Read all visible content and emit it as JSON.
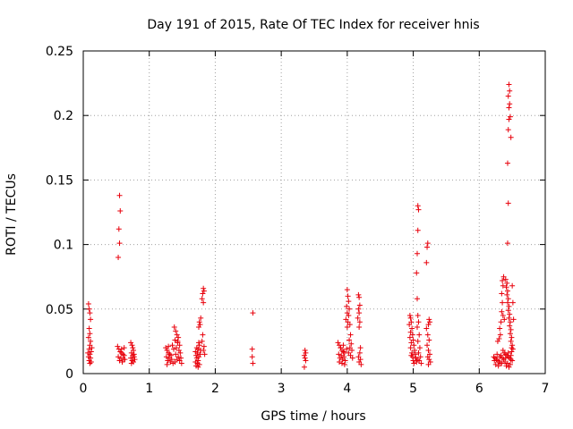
{
  "chart_data": {
    "type": "scatter",
    "title": "Day 191 of 2015, Rate Of TEC Index for receiver hnis",
    "xlabel": "GPS time / hours",
    "ylabel": "ROTI / TECUs",
    "xlim": [
      0,
      7
    ],
    "ylim": [
      0,
      0.25
    ],
    "xticks": [
      0,
      1,
      2,
      3,
      4,
      5,
      6,
      7
    ],
    "xtick_labels": [
      "0",
      "1",
      "2",
      "3",
      "4",
      "5",
      "6",
      "7"
    ],
    "yticks": [
      0,
      0.05,
      0.1,
      0.15,
      0.2,
      0.25
    ],
    "ytick_labels": [
      "0",
      "0.05",
      "0.1",
      "0.15",
      "0.2",
      "0.25"
    ],
    "grid": true,
    "marker": "+",
    "marker_color": "#e8000b",
    "series": [
      {
        "name": "ROTI",
        "points": [
          [
            0.08,
            0.054
          ],
          [
            0.09,
            0.05
          ],
          [
            0.1,
            0.047
          ],
          [
            0.11,
            0.042
          ],
          [
            0.09,
            0.035
          ],
          [
            0.1,
            0.031
          ],
          [
            0.08,
            0.028
          ],
          [
            0.11,
            0.025
          ],
          [
            0.1,
            0.022
          ],
          [
            0.09,
            0.019
          ],
          [
            0.12,
            0.017
          ],
          [
            0.1,
            0.015
          ],
          [
            0.08,
            0.013
          ],
          [
            0.11,
            0.012
          ],
          [
            0.09,
            0.01
          ],
          [
            0.12,
            0.009
          ],
          [
            0.1,
            0.008
          ],
          [
            0.07,
            0.016
          ],
          [
            0.13,
            0.02
          ],
          [
            0.55,
            0.138
          ],
          [
            0.56,
            0.126
          ],
          [
            0.54,
            0.112
          ],
          [
            0.55,
            0.101
          ],
          [
            0.53,
            0.09
          ],
          [
            0.52,
            0.021
          ],
          [
            0.54,
            0.019
          ],
          [
            0.56,
            0.017
          ],
          [
            0.58,
            0.016
          ],
          [
            0.6,
            0.015
          ],
          [
            0.62,
            0.014
          ],
          [
            0.53,
            0.013
          ],
          [
            0.57,
            0.012
          ],
          [
            0.61,
            0.011
          ],
          [
            0.55,
            0.01
          ],
          [
            0.59,
            0.009
          ],
          [
            0.63,
            0.011
          ],
          [
            0.58,
            0.019
          ],
          [
            0.62,
            0.02
          ],
          [
            0.72,
            0.024
          ],
          [
            0.74,
            0.022
          ],
          [
            0.75,
            0.02
          ],
          [
            0.76,
            0.018
          ],
          [
            0.73,
            0.016
          ],
          [
            0.77,
            0.015
          ],
          [
            0.75,
            0.014
          ],
          [
            0.72,
            0.012
          ],
          [
            0.78,
            0.011
          ],
          [
            0.74,
            0.01
          ],
          [
            0.76,
            0.009
          ],
          [
            0.73,
            0.008
          ],
          [
            0.77,
            0.013
          ],
          [
            1.25,
            0.02
          ],
          [
            1.27,
            0.018
          ],
          [
            1.29,
            0.016
          ],
          [
            1.31,
            0.015
          ],
          [
            1.33,
            0.014
          ],
          [
            1.26,
            0.013
          ],
          [
            1.3,
            0.012
          ],
          [
            1.34,
            0.011
          ],
          [
            1.28,
            0.01
          ],
          [
            1.32,
            0.009
          ],
          [
            1.36,
            0.008
          ],
          [
            1.27,
            0.007
          ],
          [
            1.35,
            0.022
          ],
          [
            1.37,
            0.019
          ],
          [
            1.29,
            0.021
          ],
          [
            1.38,
            0.036
          ],
          [
            1.4,
            0.033
          ],
          [
            1.42,
            0.03
          ],
          [
            1.44,
            0.028
          ],
          [
            1.39,
            0.026
          ],
          [
            1.43,
            0.024
          ],
          [
            1.46,
            0.022
          ],
          [
            1.41,
            0.02
          ],
          [
            1.45,
            0.018
          ],
          [
            1.47,
            0.016
          ],
          [
            1.4,
            0.015
          ],
          [
            1.44,
            0.013
          ],
          [
            1.48,
            0.012
          ],
          [
            1.42,
            0.011
          ],
          [
            1.46,
            0.01
          ],
          [
            1.39,
            0.009
          ],
          [
            1.49,
            0.008
          ],
          [
            1.43,
            0.025
          ],
          [
            1.75,
            0.024
          ],
          [
            1.76,
            0.022
          ],
          [
            1.72,
            0.02
          ],
          [
            1.74,
            0.019
          ],
          [
            1.7,
            0.017
          ],
          [
            1.73,
            0.016
          ],
          [
            1.71,
            0.014
          ],
          [
            1.75,
            0.013
          ],
          [
            1.72,
            0.012
          ],
          [
            1.74,
            0.01
          ],
          [
            1.7,
            0.009
          ],
          [
            1.73,
            0.008
          ],
          [
            1.76,
            0.007
          ],
          [
            1.71,
            0.006
          ],
          [
            1.74,
            0.005
          ],
          [
            1.78,
            0.018
          ],
          [
            1.77,
            0.015
          ],
          [
            1.78,
            0.043
          ],
          [
            1.76,
            0.04
          ],
          [
            1.77,
            0.038
          ],
          [
            1.75,
            0.036
          ],
          [
            1.82,
            0.066
          ],
          [
            1.83,
            0.064
          ],
          [
            1.81,
            0.062
          ],
          [
            1.8,
            0.058
          ],
          [
            1.82,
            0.055
          ],
          [
            1.81,
            0.03
          ],
          [
            1.8,
            0.025
          ],
          [
            1.83,
            0.021
          ],
          [
            1.82,
            0.018
          ],
          [
            1.84,
            0.015
          ],
          [
            2.57,
            0.047
          ],
          [
            2.56,
            0.019
          ],
          [
            2.56,
            0.013
          ],
          [
            2.57,
            0.008
          ],
          [
            3.36,
            0.018
          ],
          [
            3.37,
            0.016
          ],
          [
            3.35,
            0.014
          ],
          [
            3.36,
            0.012
          ],
          [
            3.37,
            0.01
          ],
          [
            3.35,
            0.005
          ],
          [
            3.86,
            0.024
          ],
          [
            3.88,
            0.022
          ],
          [
            3.9,
            0.02
          ],
          [
            3.92,
            0.018
          ],
          [
            3.94,
            0.017
          ],
          [
            3.96,
            0.016
          ],
          [
            3.87,
            0.015
          ],
          [
            3.91,
            0.014
          ],
          [
            3.95,
            0.013
          ],
          [
            3.89,
            0.012
          ],
          [
            3.93,
            0.011
          ],
          [
            3.97,
            0.01
          ],
          [
            3.88,
            0.009
          ],
          [
            3.92,
            0.008
          ],
          [
            3.96,
            0.007
          ],
          [
            3.9,
            0.02
          ],
          [
            3.94,
            0.022
          ],
          [
            3.99,
            0.019
          ],
          [
            4.0,
            0.065
          ],
          [
            4.01,
            0.06
          ],
          [
            4.02,
            0.056
          ],
          [
            3.99,
            0.052
          ],
          [
            4.03,
            0.05
          ],
          [
            4.0,
            0.047
          ],
          [
            4.02,
            0.045
          ],
          [
            3.98,
            0.042
          ],
          [
            4.01,
            0.04
          ],
          [
            4.04,
            0.038
          ],
          [
            4.0,
            0.036
          ],
          [
            4.05,
            0.03
          ],
          [
            4.03,
            0.026
          ],
          [
            4.06,
            0.023
          ],
          [
            4.04,
            0.02
          ],
          [
            4.07,
            0.018
          ],
          [
            4.02,
            0.016
          ],
          [
            4.05,
            0.014
          ],
          [
            4.08,
            0.012
          ],
          [
            4.17,
            0.061
          ],
          [
            4.18,
            0.059
          ],
          [
            4.19,
            0.053
          ],
          [
            4.17,
            0.05
          ],
          [
            4.18,
            0.047
          ],
          [
            4.16,
            0.043
          ],
          [
            4.19,
            0.04
          ],
          [
            4.18,
            0.036
          ],
          [
            4.2,
            0.02
          ],
          [
            4.19,
            0.016
          ],
          [
            4.17,
            0.013
          ],
          [
            4.2,
            0.011
          ],
          [
            4.18,
            0.009
          ],
          [
            4.21,
            0.007
          ],
          [
            4.95,
            0.045
          ],
          [
            4.96,
            0.043
          ],
          [
            4.97,
            0.04
          ],
          [
            4.94,
            0.038
          ],
          [
            4.98,
            0.035
          ],
          [
            4.96,
            0.032
          ],
          [
            4.99,
            0.03
          ],
          [
            4.95,
            0.028
          ],
          [
            5.0,
            0.026
          ],
          [
            4.97,
            0.024
          ],
          [
            5.01,
            0.022
          ],
          [
            4.96,
            0.02
          ],
          [
            5.02,
            0.018
          ],
          [
            4.98,
            0.016
          ],
          [
            5.03,
            0.015
          ],
          [
            4.99,
            0.013
          ],
          [
            5.04,
            0.012
          ],
          [
            5.0,
            0.01
          ],
          [
            5.05,
            0.009
          ],
          [
            5.01,
            0.008
          ],
          [
            5.06,
            0.011
          ],
          [
            4.97,
            0.014
          ],
          [
            5.07,
            0.13
          ],
          [
            5.08,
            0.127
          ],
          [
            5.07,
            0.111
          ],
          [
            5.06,
            0.093
          ],
          [
            5.05,
            0.078
          ],
          [
            5.06,
            0.058
          ],
          [
            5.07,
            0.045
          ],
          [
            5.08,
            0.04
          ],
          [
            5.06,
            0.036
          ],
          [
            5.09,
            0.03
          ],
          [
            5.07,
            0.025
          ],
          [
            5.1,
            0.02
          ],
          [
            5.08,
            0.016
          ],
          [
            5.11,
            0.013
          ],
          [
            5.09,
            0.01
          ],
          [
            5.12,
            0.008
          ],
          [
            5.22,
            0.101
          ],
          [
            5.21,
            0.098
          ],
          [
            5.2,
            0.086
          ],
          [
            5.24,
            0.042
          ],
          [
            5.25,
            0.04
          ],
          [
            5.23,
            0.038
          ],
          [
            5.2,
            0.035
          ],
          [
            5.22,
            0.03
          ],
          [
            5.24,
            0.026
          ],
          [
            5.21,
            0.022
          ],
          [
            5.23,
            0.018
          ],
          [
            5.25,
            0.015
          ],
          [
            5.22,
            0.013
          ],
          [
            5.24,
            0.011
          ],
          [
            5.26,
            0.009
          ],
          [
            5.23,
            0.007
          ],
          [
            6.22,
            0.013
          ],
          [
            6.24,
            0.012
          ],
          [
            6.26,
            0.011
          ],
          [
            6.28,
            0.01
          ],
          [
            6.3,
            0.009
          ],
          [
            6.32,
            0.008
          ],
          [
            6.25,
            0.007
          ],
          [
            6.29,
            0.006
          ],
          [
            6.33,
            0.014
          ],
          [
            6.27,
            0.015
          ],
          [
            6.31,
            0.013
          ],
          [
            6.35,
            0.012
          ],
          [
            6.23,
            0.01
          ],
          [
            6.34,
            0.008
          ],
          [
            6.28,
            0.025
          ],
          [
            6.3,
            0.027
          ],
          [
            6.32,
            0.03
          ],
          [
            6.31,
            0.035
          ],
          [
            6.33,
            0.04
          ],
          [
            6.34,
            0.048
          ],
          [
            6.35,
            0.055
          ],
          [
            6.34,
            0.062
          ],
          [
            6.36,
            0.068
          ],
          [
            6.35,
            0.072
          ],
          [
            6.37,
            0.075
          ],
          [
            6.36,
            0.045
          ],
          [
            6.38,
            0.042
          ],
          [
            6.36,
            0.018
          ],
          [
            6.38,
            0.016
          ],
          [
            6.4,
            0.015
          ],
          [
            6.42,
            0.014
          ],
          [
            6.44,
            0.013
          ],
          [
            6.46,
            0.012
          ],
          [
            6.48,
            0.011
          ],
          [
            6.5,
            0.01
          ],
          [
            6.39,
            0.009
          ],
          [
            6.43,
            0.008
          ],
          [
            6.47,
            0.007
          ],
          [
            6.41,
            0.006
          ],
          [
            6.45,
            0.005
          ],
          [
            6.49,
            0.017
          ],
          [
            6.51,
            0.019
          ],
          [
            6.37,
            0.011
          ],
          [
            6.4,
            0.012
          ],
          [
            6.44,
            0.016
          ],
          [
            6.48,
            0.014
          ],
          [
            6.45,
            0.224
          ],
          [
            6.46,
            0.219
          ],
          [
            6.44,
            0.215
          ],
          [
            6.46,
            0.209
          ],
          [
            6.45,
            0.206
          ],
          [
            6.47,
            0.199
          ],
          [
            6.45,
            0.197
          ],
          [
            6.44,
            0.189
          ],
          [
            6.48,
            0.183
          ],
          [
            6.43,
            0.163
          ],
          [
            6.44,
            0.132
          ],
          [
            6.43,
            0.101
          ],
          [
            6.4,
            0.073
          ],
          [
            6.42,
            0.07
          ],
          [
            6.41,
            0.067
          ],
          [
            6.43,
            0.064
          ],
          [
            6.42,
            0.061
          ],
          [
            6.44,
            0.058
          ],
          [
            6.43,
            0.055
          ],
          [
            6.45,
            0.052
          ],
          [
            6.44,
            0.049
          ],
          [
            6.46,
            0.046
          ],
          [
            6.45,
            0.043
          ],
          [
            6.47,
            0.04
          ],
          [
            6.46,
            0.037
          ],
          [
            6.48,
            0.034
          ],
          [
            6.47,
            0.031
          ],
          [
            6.49,
            0.028
          ],
          [
            6.48,
            0.025
          ],
          [
            6.5,
            0.022
          ],
          [
            6.49,
            0.02
          ],
          [
            6.52,
            0.042
          ],
          [
            6.51,
            0.055
          ],
          [
            6.5,
            0.068
          ]
        ]
      }
    ]
  }
}
